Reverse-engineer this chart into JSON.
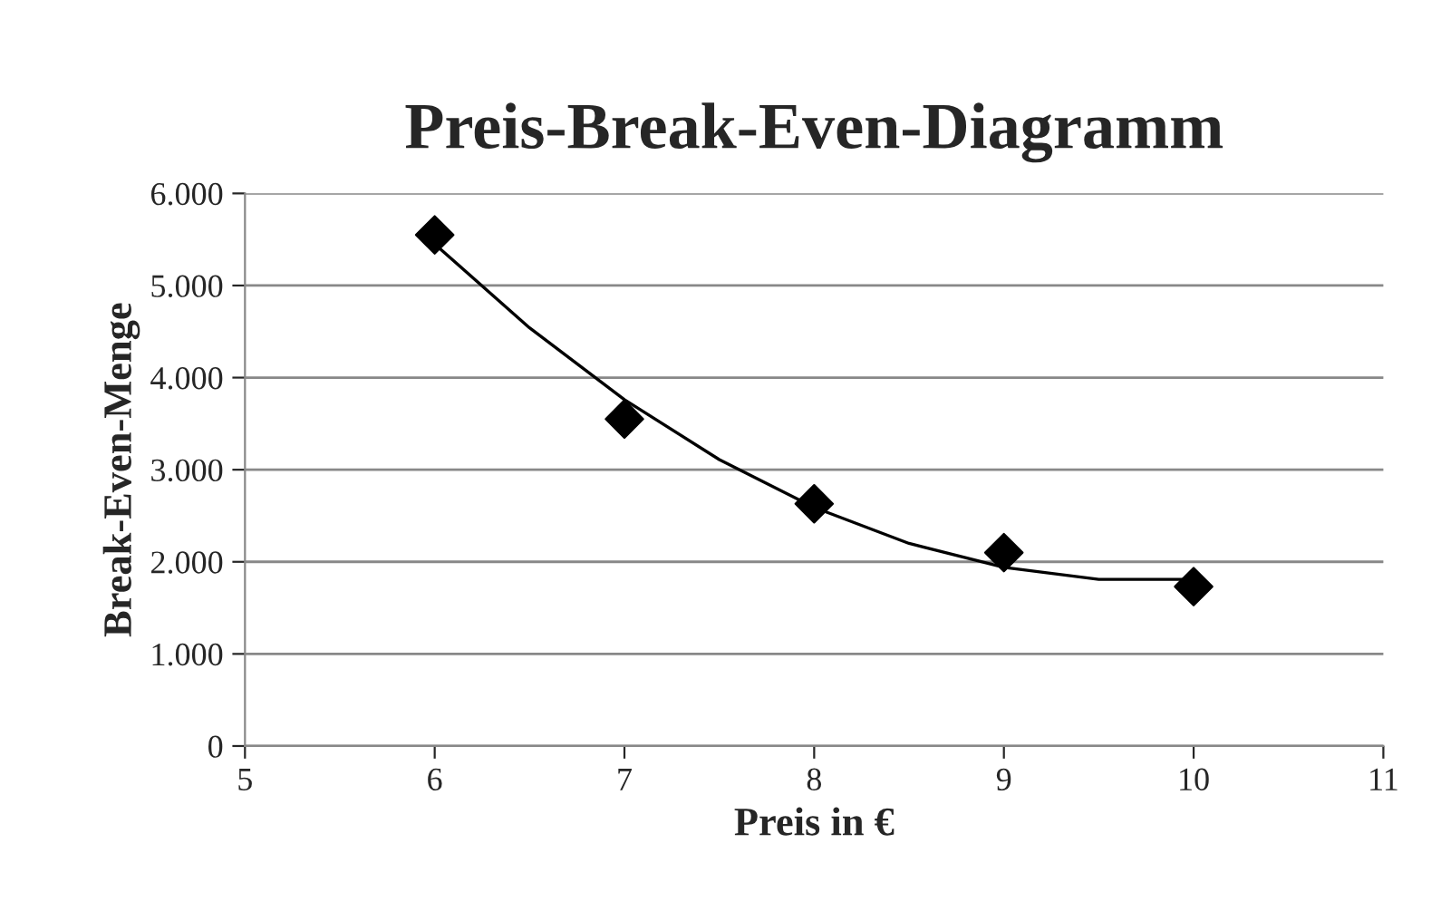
{
  "chart_data": {
    "type": "scatter",
    "title": "Preis-Break-Even-Diagramm",
    "xlabel": "Preis in €",
    "ylabel": "Break-Even-Menge",
    "x": [
      6,
      7,
      8,
      9,
      10
    ],
    "series": [
      {
        "color": "#000000",
        "marker": "diamond",
        "values": [
          5550,
          3550,
          2630,
          2100,
          1730
        ]
      },
      {
        "type": "line",
        "marker": "none",
        "color": "#000000",
        "x": [
          6,
          6.5,
          7,
          7.5,
          8,
          8.5,
          9,
          9.5,
          10
        ],
        "values": [
          5450,
          4540,
          3760,
          3110,
          2590,
          2200,
          1940,
          1810,
          1810
        ]
      }
    ],
    "xlim": [
      5,
      11
    ],
    "xticks": [
      5,
      6,
      7,
      8,
      9,
      10,
      11
    ],
    "ylim": [
      0,
      6000
    ],
    "yticks": [
      0,
      {
        "value": 1000,
        "label": "1.000"
      },
      {
        "value": 2000,
        "label": "2.000"
      },
      {
        "value": 3000,
        "label": "3.000"
      },
      {
        "value": 4000,
        "label": "4.000"
      },
      {
        "value": 5000,
        "label": "5.000"
      },
      {
        "value": 6000,
        "label": "6.000"
      }
    ],
    "grid": "y",
    "line_style": "solid"
  }
}
